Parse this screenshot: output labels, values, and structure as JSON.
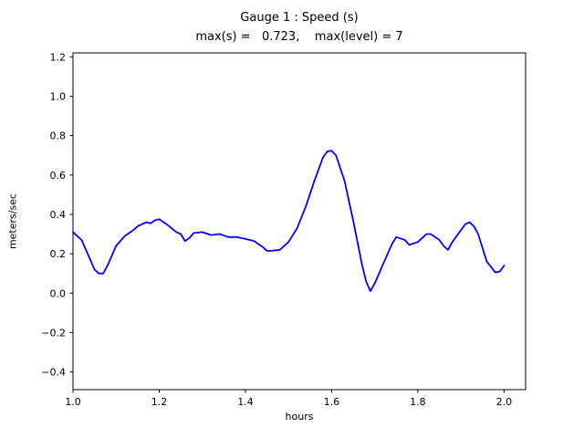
{
  "figure": {
    "title": "Gauge 1 : Speed (s)",
    "subtitle": "max(s) =   0.723,    max(level) = 7",
    "xlabel": "hours",
    "ylabel": "meters/sec"
  },
  "chart_data": {
    "type": "line",
    "title": "Gauge 1 : Speed (s)",
    "subtitle": "max(s) =   0.723,    max(level) = 7",
    "xlabel": "hours",
    "ylabel": "meters/sec",
    "max_s": 0.723,
    "max_level": 7,
    "line_color": "#0000ff",
    "background_color": "#ffffff",
    "grid": false,
    "legend": "none",
    "xlim": [
      1.0,
      2.05
    ],
    "ylim": [
      -0.49,
      1.22
    ],
    "xticks": [
      1.0,
      1.2,
      1.4,
      1.6,
      1.8,
      2.0
    ],
    "xtick_labels": [
      "1.0",
      "1.2",
      "1.4",
      "1.6",
      "1.8",
      "2.0"
    ],
    "yticks": [
      -0.4,
      -0.2,
      0.0,
      0.2,
      0.4,
      0.6,
      0.8,
      1.0,
      1.2
    ],
    "ytick_labels": [
      "−0.4",
      "−0.2",
      "0.0",
      "0.2",
      "0.4",
      "0.6",
      "0.8",
      "1.0",
      "1.2"
    ],
    "x": [
      1.0,
      1.02,
      1.04,
      1.05,
      1.06,
      1.07,
      1.08,
      1.1,
      1.12,
      1.14,
      1.15,
      1.16,
      1.17,
      1.18,
      1.19,
      1.2,
      1.22,
      1.24,
      1.25,
      1.26,
      1.27,
      1.28,
      1.3,
      1.32,
      1.34,
      1.36,
      1.38,
      1.4,
      1.42,
      1.44,
      1.45,
      1.46,
      1.48,
      1.5,
      1.52,
      1.54,
      1.56,
      1.58,
      1.59,
      1.6,
      1.61,
      1.63,
      1.65,
      1.67,
      1.68,
      1.69,
      1.7,
      1.72,
      1.74,
      1.75,
      1.77,
      1.78,
      1.8,
      1.82,
      1.83,
      1.85,
      1.86,
      1.87,
      1.88,
      1.9,
      1.91,
      1.92,
      1.93,
      1.94,
      1.96,
      1.98,
      1.99,
      2.0
    ],
    "y": [
      0.31,
      0.27,
      0.17,
      0.12,
      0.1,
      0.1,
      0.14,
      0.24,
      0.29,
      0.32,
      0.34,
      0.35,
      0.36,
      0.355,
      0.37,
      0.375,
      0.345,
      0.31,
      0.3,
      0.265,
      0.28,
      0.305,
      0.31,
      0.295,
      0.3,
      0.285,
      0.285,
      0.275,
      0.265,
      0.235,
      0.215,
      0.215,
      0.22,
      0.26,
      0.33,
      0.44,
      0.57,
      0.69,
      0.72,
      0.723,
      0.7,
      0.57,
      0.37,
      0.15,
      0.06,
      0.01,
      0.05,
      0.15,
      0.25,
      0.285,
      0.27,
      0.245,
      0.26,
      0.3,
      0.3,
      0.27,
      0.24,
      0.22,
      0.26,
      0.32,
      0.35,
      0.36,
      0.34,
      0.3,
      0.16,
      0.105,
      0.11,
      0.14
    ]
  }
}
